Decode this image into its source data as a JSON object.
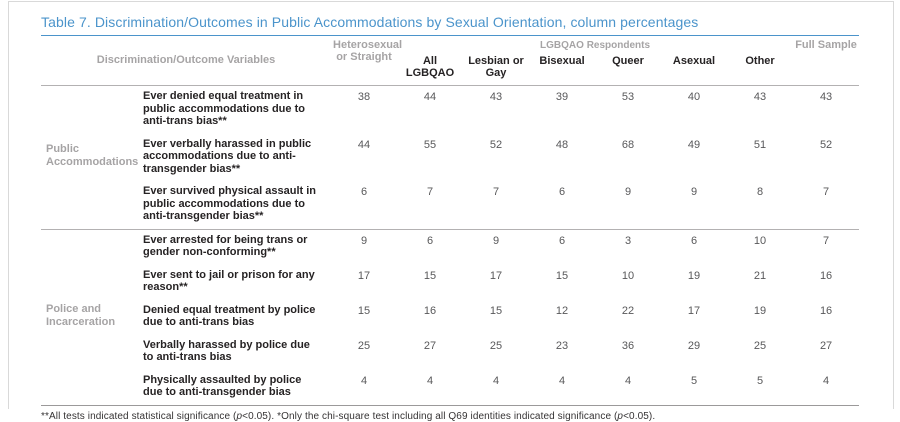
{
  "page": {
    "title": "Table 7. Discrimination/Outcomes in Public Accommodations by Sexual Orientation, column percentages"
  },
  "table": {
    "variables_header": "Discrimination/Outcome Variables",
    "span_header": "LGBQAO Respondents",
    "columns": [
      "Heterosexual or Straight",
      "All LGBQAO",
      "Lesbian or Gay",
      "Bisexual",
      "Queer",
      "Asexual",
      "Other",
      "Full Sample"
    ],
    "groups": [
      {
        "label": "Public Accommodations",
        "rows": [
          {
            "variable": "Ever denied equal treatment in public accommodations due to anti-trans bias**",
            "values": [
              38,
              44,
              43,
              39,
              53,
              40,
              43,
              43
            ]
          },
          {
            "variable": "Ever verbally harassed in public accommodations due to anti-transgender bias**",
            "values": [
              44,
              55,
              52,
              48,
              68,
              49,
              51,
              52
            ]
          },
          {
            "variable": "Ever survived physical assault in public accommodations due to anti-transgender bias**",
            "values": [
              6,
              7,
              7,
              6,
              9,
              9,
              8,
              7
            ]
          }
        ]
      },
      {
        "label": "Police and Incarceration",
        "rows": [
          {
            "variable": "Ever arrested for being trans or gender non-conforming**",
            "values": [
              9,
              6,
              9,
              6,
              3,
              6,
              10,
              7
            ]
          },
          {
            "variable": "Ever sent to jail or prison for any reason**",
            "values": [
              17,
              15,
              17,
              15,
              10,
              19,
              21,
              16
            ]
          },
          {
            "variable": "Denied equal treatment by police due to anti-trans bias",
            "values": [
              15,
              16,
              15,
              12,
              22,
              17,
              19,
              16
            ]
          },
          {
            "variable": "Verbally harassed by police due to anti-trans bias",
            "values": [
              25,
              27,
              25,
              23,
              36,
              29,
              25,
              27
            ]
          },
          {
            "variable": "Physically assaulted by police due to anti-transgender bias",
            "values": [
              4,
              4,
              4,
              4,
              4,
              5,
              5,
              4
            ]
          }
        ]
      }
    ],
    "footnote_parts": [
      {
        "text": "**All tests indicated statistical significance ("
      },
      {
        "text": "p",
        "italic": true
      },
      {
        "text": "<0.05). *Only the chi-square test including all Q69 identities indicated significance ("
      },
      {
        "text": "p",
        "italic": true
      },
      {
        "text": "<0.05)."
      }
    ]
  },
  "colors": {
    "title_blue": "#4b94cb",
    "gray_text": "#a6a4a5",
    "dark_text": "#262324",
    "value_text": "#58585a",
    "rule_gray": "#b3b1b2",
    "page_border": "#d9d9d9"
  }
}
